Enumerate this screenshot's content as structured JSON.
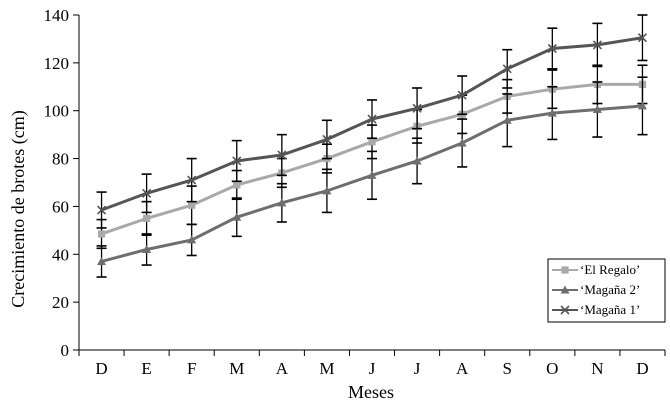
{
  "chart_data": {
    "type": "line",
    "xlabel": "Meses",
    "ylabel": "Crecimiento de brotes (cm)",
    "categories": [
      "D",
      "E",
      "F",
      "M",
      "A",
      "M",
      "J",
      "J",
      "A",
      "S",
      "O",
      "N",
      "D"
    ],
    "ylim": [
      0,
      140
    ],
    "yticks": [
      0,
      20,
      40,
      60,
      80,
      100,
      120,
      140
    ],
    "grid": false,
    "legend_position": "bottom-right",
    "series": [
      {
        "name": "‘El Regalo’",
        "marker": "square",
        "color": "#a9a9a9",
        "values": [
          48.5,
          55,
          60.5,
          69,
          74,
          80,
          87,
          93.5,
          98.5,
          106,
          109,
          111,
          111
        ],
        "errors": [
          6,
          7,
          8,
          6,
          6,
          6,
          7,
          7,
          8,
          7,
          8,
          8,
          8
        ]
      },
      {
        "name": "‘Magaña 2’",
        "marker": "triangle",
        "color": "#6e6e6e",
        "values": [
          37,
          42,
          46,
          55.5,
          61.5,
          66.5,
          73,
          79,
          86.5,
          96,
          99,
          100.5,
          102
        ],
        "errors": [
          6.5,
          6.5,
          6.5,
          8,
          8,
          9,
          10,
          9.5,
          10,
          11,
          11,
          11.5,
          12
        ]
      },
      {
        "name": "‘Magaña 1’",
        "marker": "x",
        "color": "#555555",
        "values": [
          58.5,
          65.5,
          71,
          79,
          81.5,
          88,
          96.5,
          101,
          106.5,
          117.5,
          126,
          127.5,
          130.5
        ],
        "errors": [
          7.5,
          8,
          9,
          8.5,
          8.5,
          8,
          8,
          8.5,
          8,
          8,
          8.5,
          9,
          9.5
        ]
      }
    ]
  }
}
